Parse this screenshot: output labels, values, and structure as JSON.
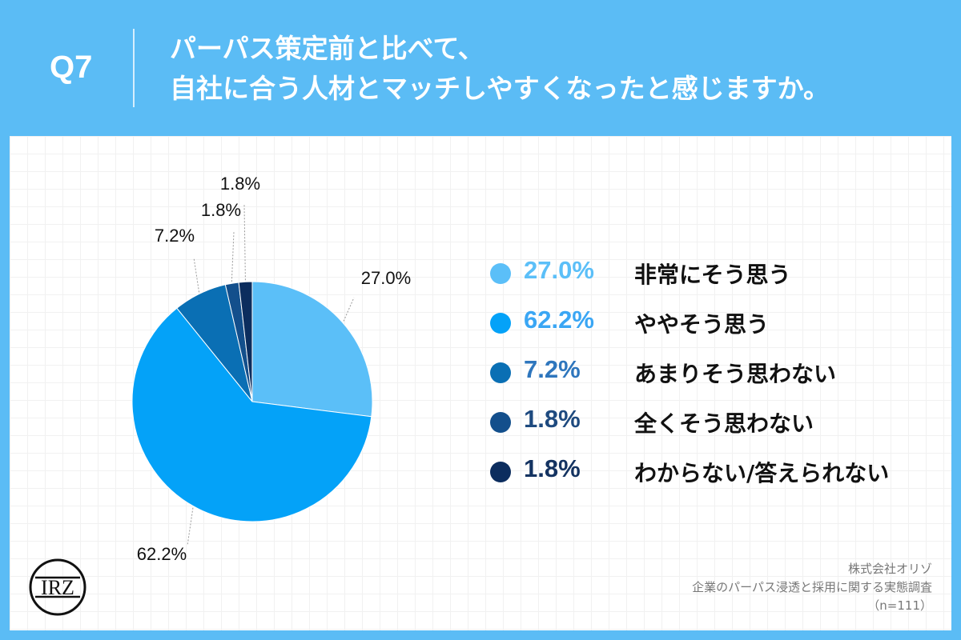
{
  "header": {
    "question_no": "Q7",
    "title_line1": "パーパス策定前と比べて、",
    "title_line2": "自社に合う人材とマッチしやすくなったと感じますか。"
  },
  "chart_data": {
    "type": "pie",
    "start_angle_deg": 0,
    "direction": "clockwise",
    "slices": [
      {
        "label": "非常にそう思う",
        "value": 27.0,
        "pct_text": "27.0%",
        "color": "#5bbff8",
        "pct_color": "#5bbff8"
      },
      {
        "label": "ややそう思う",
        "value": 62.2,
        "pct_text": "62.2%",
        "color": "#04a2f8",
        "pct_color": "#3aa6f4"
      },
      {
        "label": "あまりそう思わない",
        "value": 7.2,
        "pct_text": "7.2%",
        "color": "#0a6fb4",
        "pct_color": "#2e76bd"
      },
      {
        "label": "全くそう思わない",
        "value": 1.8,
        "pct_text": "1.8%",
        "color": "#134f8c",
        "pct_color": "#1e4a7f"
      },
      {
        "label": "わからない/答えられない",
        "value": 1.8,
        "pct_text": "1.8%",
        "color": "#0c2d5e",
        "pct_color": "#143361"
      }
    ]
  },
  "footer": {
    "company": "株式会社オリゾ",
    "survey": "企業のパーパス浸透と採用に関する実態調査",
    "sample": "（n=111）"
  },
  "logo": {
    "text": "IRZ"
  }
}
